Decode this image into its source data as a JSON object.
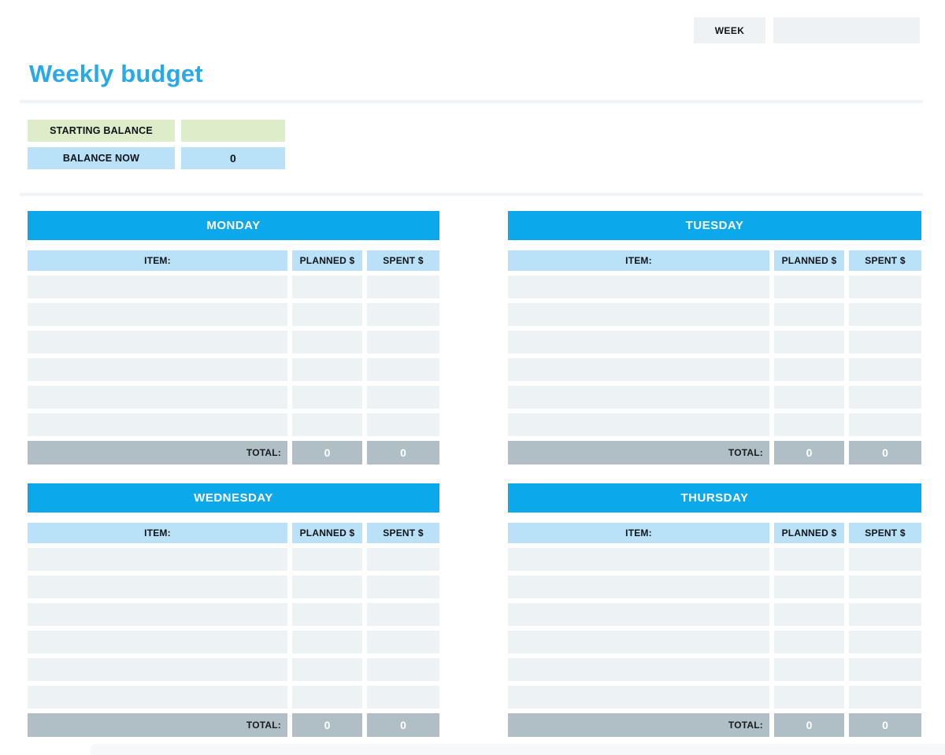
{
  "header": {
    "week_label": "WEEK",
    "week_value": ""
  },
  "title": "Weekly budget",
  "balance": {
    "starting_label": "STARTING BALANCE",
    "starting_value": "",
    "now_label": "BALANCE NOW",
    "now_value": "0"
  },
  "columns": {
    "item": "ITEM:",
    "planned": "PLANNED $",
    "spent": "SPENT $"
  },
  "total_label": "TOTAL:",
  "days": [
    {
      "name": "MONDAY",
      "rows": [
        {
          "item": "",
          "planned": "",
          "spent": ""
        },
        {
          "item": "",
          "planned": "",
          "spent": ""
        },
        {
          "item": "",
          "planned": "",
          "spent": ""
        },
        {
          "item": "",
          "planned": "",
          "spent": ""
        },
        {
          "item": "",
          "planned": "",
          "spent": ""
        },
        {
          "item": "",
          "planned": "",
          "spent": ""
        }
      ],
      "total": {
        "planned": "0",
        "spent": "0"
      }
    },
    {
      "name": "TUESDAY",
      "rows": [
        {
          "item": "",
          "planned": "",
          "spent": ""
        },
        {
          "item": "",
          "planned": "",
          "spent": ""
        },
        {
          "item": "",
          "planned": "",
          "spent": ""
        },
        {
          "item": "",
          "planned": "",
          "spent": ""
        },
        {
          "item": "",
          "planned": "",
          "spent": ""
        },
        {
          "item": "",
          "planned": "",
          "spent": ""
        }
      ],
      "total": {
        "planned": "0",
        "spent": "0"
      }
    },
    {
      "name": "WEDNESDAY",
      "rows": [
        {
          "item": "",
          "planned": "",
          "spent": ""
        },
        {
          "item": "",
          "planned": "",
          "spent": ""
        },
        {
          "item": "",
          "planned": "",
          "spent": ""
        },
        {
          "item": "",
          "planned": "",
          "spent": ""
        },
        {
          "item": "",
          "planned": "",
          "spent": ""
        },
        {
          "item": "",
          "planned": "",
          "spent": ""
        }
      ],
      "total": {
        "planned": "0",
        "spent": "0"
      }
    },
    {
      "name": "THURSDAY",
      "rows": [
        {
          "item": "",
          "planned": "",
          "spent": ""
        },
        {
          "item": "",
          "planned": "",
          "spent": ""
        },
        {
          "item": "",
          "planned": "",
          "spent": ""
        },
        {
          "item": "",
          "planned": "",
          "spent": ""
        },
        {
          "item": "",
          "planned": "",
          "spent": ""
        },
        {
          "item": "",
          "planned": "",
          "spent": ""
        }
      ],
      "total": {
        "planned": "0",
        "spent": "0"
      }
    }
  ],
  "colors": {
    "accent_blue": "#0ca8ec",
    "title_blue": "#29a9e6",
    "light_blue": "#b9e1f8",
    "light_green": "#ddedca",
    "row_gray": "#edf2f5",
    "total_gray": "#b0bec5",
    "box_gray": "#eef2f5"
  }
}
